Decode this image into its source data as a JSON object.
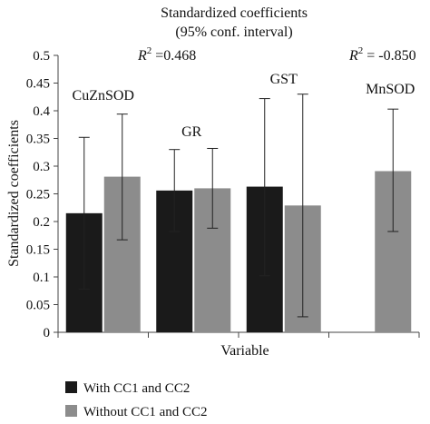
{
  "chart_data": {
    "type": "bar",
    "title": "Standardized coefficients",
    "subtitle": "(95% conf. interval)",
    "xlabel": "Variable",
    "ylabel": "Standardized coefficients",
    "ylim": [
      0,
      0.5
    ],
    "yticks": [
      "0",
      "0.05",
      "0.1",
      "0.15",
      "0.2",
      "0.25",
      "0.3",
      "0.35",
      "0.4",
      "0.45",
      "0.5"
    ],
    "categories": [
      "CuZnSOD",
      "GR",
      "GST",
      "MnSOD"
    ],
    "series": [
      {
        "name": "With CC1 and CC2",
        "color": "#1a1a1a",
        "values": [
          0.215,
          0.256,
          0.263,
          null
        ],
        "ci_low": [
          0.078,
          0.182,
          0.102,
          null
        ],
        "ci_high": [
          0.352,
          0.33,
          0.422,
          null
        ]
      },
      {
        "name": "Without CC1 and CC2",
        "color": "#8c8c8c",
        "values": [
          0.281,
          0.26,
          0.229,
          0.291
        ],
        "ci_low": [
          0.167,
          0.188,
          0.028,
          0.182
        ],
        "ci_high": [
          0.394,
          0.332,
          0.43,
          0.403
        ]
      }
    ],
    "annotations": [
      {
        "prefix": "R",
        "sup": "2",
        "text": " =0.468"
      },
      {
        "prefix": "R",
        "sup": "2",
        "text": " = -0.850"
      }
    ],
    "grid": false,
    "legend_position": "bottom-left"
  }
}
